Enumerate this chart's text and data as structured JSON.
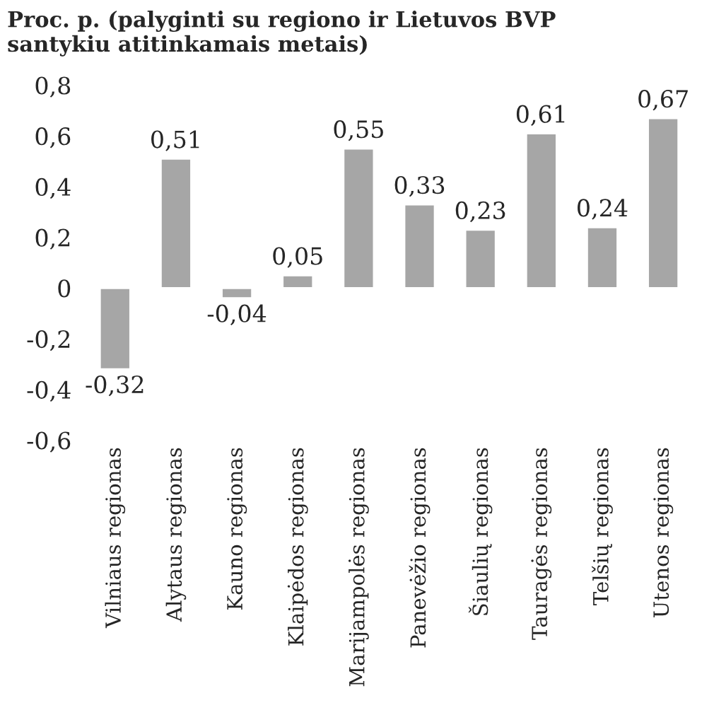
{
  "chart_data": {
    "type": "bar",
    "title": "Proc. p. (palyginti su regiono ir Lietuvos BVP\nsantykiu atitinkamais metais)",
    "categories": [
      "Vilniaus regionas",
      "Alytaus regionas",
      "Kauno regionas",
      "Klaipėdos regionas",
      "Marijampolės regionas",
      "Panevėžio regionas",
      "Šiaulių regionas",
      "Tauragės regionas",
      "Telšių regionas",
      "Utenos regionas"
    ],
    "values": [
      -0.32,
      0.51,
      -0.04,
      0.05,
      0.55,
      0.33,
      0.23,
      0.61,
      0.24,
      0.67
    ],
    "value_labels": [
      "-0,32",
      "0,51",
      "-0,04",
      "0,05",
      "0,55",
      "0,33",
      "0,23",
      "0,61",
      "0,24",
      "0,67"
    ],
    "color": "#a6a6a6",
    "ylim": [
      -0.6,
      0.8
    ],
    "yticks": [
      {
        "value": -0.6,
        "label": "-0,6"
      },
      {
        "value": -0.4,
        "label": "-0,4"
      },
      {
        "value": -0.2,
        "label": "-0,2"
      },
      {
        "value": 0,
        "label": "0"
      },
      {
        "value": 0.2,
        "label": "0,2"
      },
      {
        "value": 0.4,
        "label": "0,4"
      },
      {
        "value": 0.6,
        "label": "0,6"
      },
      {
        "value": 0.8,
        "label": "0,8"
      }
    ],
    "grid": false,
    "legend": false
  }
}
